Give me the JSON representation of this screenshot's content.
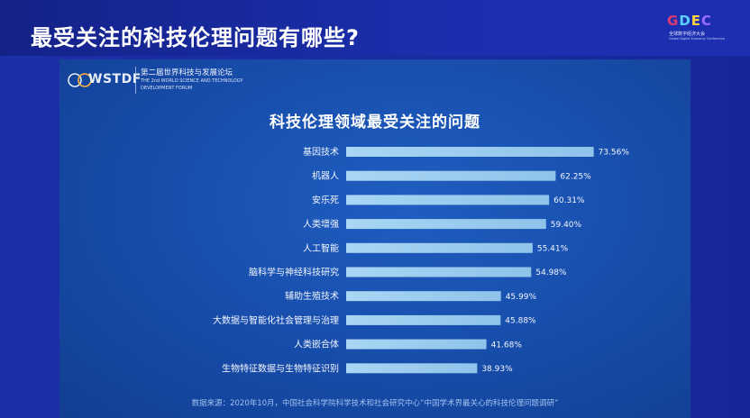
{
  "header": {
    "title": "最受关注的科技伦理问题有哪些?",
    "event_logo": {
      "word": [
        "G",
        "D",
        "E",
        "C"
      ],
      "sub_cn": "全球数字经济大会",
      "sub_en": "Global Digital Economy Conference"
    }
  },
  "forum": {
    "logo_text": "WSTDF",
    "name_cn": "第二届世界科技与发展论坛",
    "name_en_line1": "THE 2nd WORLD SCIENCE AND TECHNOLOGY",
    "name_en_line2": "DEVELOPMENT FORUM"
  },
  "chart_data": {
    "type": "bar",
    "orientation": "horizontal",
    "title": "科技伦理领域最受关注的问题",
    "categories": [
      "基因技术",
      "机器人",
      "安乐死",
      "人类增强",
      "人工智能",
      "脑科学与神经科技研究",
      "辅助生殖技术",
      "大数据与智能化社会管理与治理",
      "人类嵌合体",
      "生物特征数据与生物特征识别"
    ],
    "values": [
      73.56,
      62.25,
      60.31,
      59.4,
      55.41,
      54.98,
      45.99,
      45.88,
      41.68,
      38.93
    ],
    "value_labels": [
      "73.56%",
      "62.25%",
      "60.31%",
      "59.40%",
      "55.41%",
      "54.98%",
      "45.99%",
      "45.88%",
      "41.68%",
      "38.93%"
    ],
    "unit": "%",
    "xlim": [
      0,
      80
    ],
    "bar_color": "#8fc3ea",
    "xlabel": "",
    "ylabel": ""
  },
  "source": "数据来源：2020年10月，中国社会科学院科学技术和社会研究中心“中国学术界最关心的科技伦理问题调研”"
}
